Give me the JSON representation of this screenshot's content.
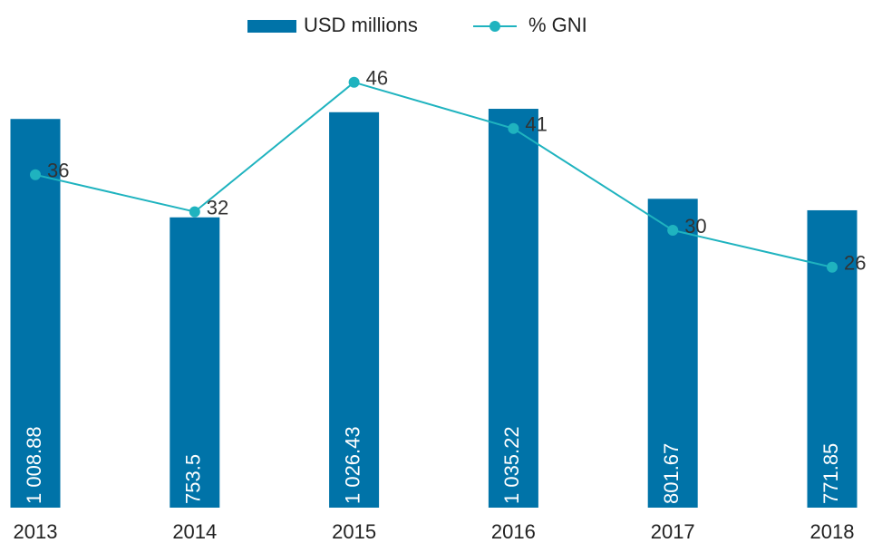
{
  "chart_data": {
    "type": "bar-line",
    "categories": [
      "2013",
      "2014",
      "2015",
      "2016",
      "2017",
      "2018"
    ],
    "series": [
      {
        "name": "USD millions",
        "type": "bar",
        "color": "#0073a8",
        "values": [
          1008.88,
          753.5,
          1026.43,
          1035.22,
          801.67,
          771.85
        ],
        "value_labels": [
          "1 008.88",
          "753.5",
          "1 026.43",
          "1 035.22",
          "801.67",
          "771.85"
        ]
      },
      {
        "name": "% GNI",
        "type": "line",
        "color": "#1fb3bf",
        "axis": "y2",
        "values": [
          36,
          32,
          46,
          41,
          30,
          26
        ]
      }
    ],
    "ylim": [
      0,
      1200
    ],
    "y2lim": [
      0,
      50
    ],
    "legend": "top"
  }
}
